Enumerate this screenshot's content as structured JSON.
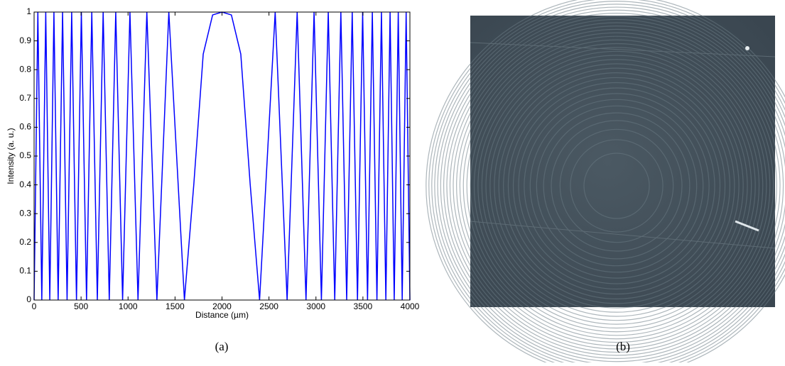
{
  "chart_data": {
    "type": "line",
    "xlabel": "Distance (µm)",
    "ylabel": "Intensity (a. u.)",
    "x": [
      0,
      40,
      82,
      124,
      167,
      211,
      256,
      303,
      351,
      400,
      451,
      503,
      558,
      614,
      673,
      735,
      800,
      869,
      942,
      1020,
      1106,
      1200,
      1307,
      1434,
      1600,
      1700,
      1800,
      1900,
      2000,
      2100,
      2200,
      2300,
      2400,
      2566,
      2693,
      2800,
      2894,
      2980,
      3058,
      3131,
      3200,
      3265,
      3327,
      3386,
      3442,
      3497,
      3549,
      3600,
      3649,
      3697,
      3744,
      3789,
      3833,
      3876,
      3918,
      3960,
      4000
    ],
    "values": [
      0,
      1,
      0,
      1,
      0,
      1,
      0,
      1,
      0,
      1,
      0,
      1,
      0,
      1,
      0,
      1,
      0,
      1,
      0,
      1,
      0,
      1,
      0,
      1,
      0,
      0.402,
      0.854,
      0.99,
      1,
      0.99,
      0.854,
      0.402,
      0,
      1,
      0,
      1,
      0,
      1,
      0,
      1,
      0,
      1,
      0,
      1,
      0,
      1,
      0,
      1,
      0,
      1,
      0,
      1,
      0,
      1,
      0,
      1,
      0
    ],
    "color": "#0000ff",
    "xlim": [
      0,
      4000
    ],
    "xticks": [
      0,
      500,
      1000,
      1500,
      2000,
      2500,
      3000,
      3500,
      4000
    ],
    "ylim": [
      0,
      1
    ],
    "yticks": [
      0,
      0.1,
      0.2,
      0.3,
      0.4,
      0.5,
      0.6,
      0.7,
      0.8,
      0.9,
      1
    ],
    "grid": false
  },
  "captions": [
    "(a)",
    "(b)"
  ]
}
